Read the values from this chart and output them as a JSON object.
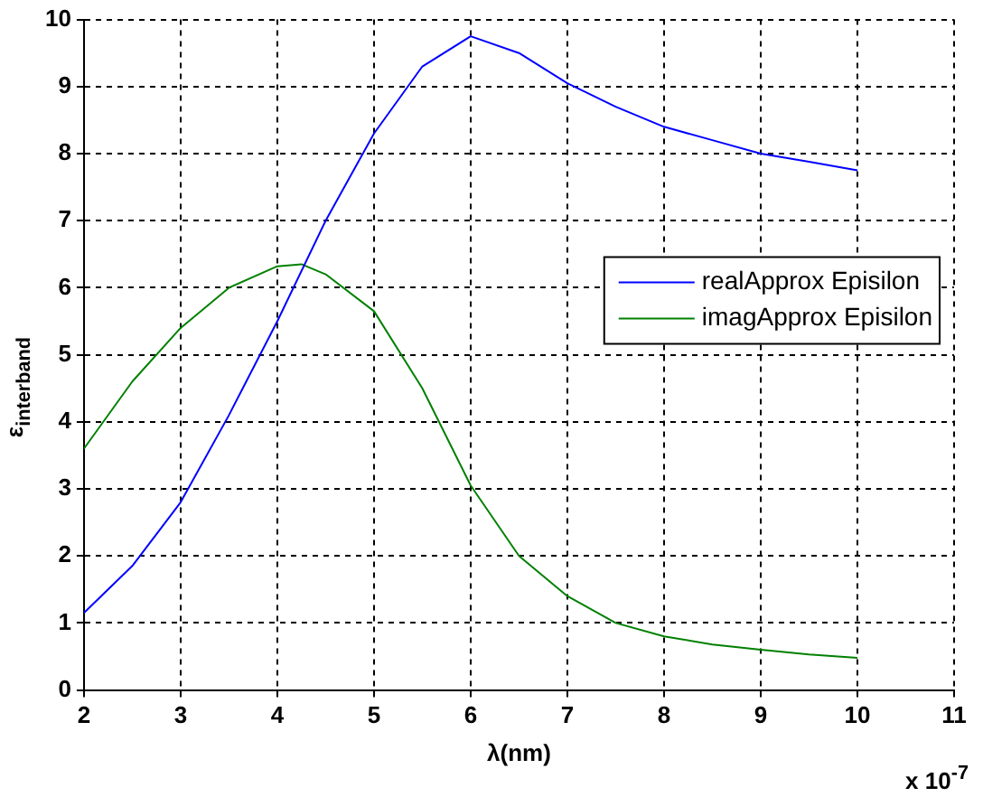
{
  "chart_data": {
    "type": "line",
    "xlabel": "λ(nm)",
    "ylabel": "ε$_{interband}$",
    "annotations": [
      "x 10$^{-7}$"
    ],
    "xlim": [
      2,
      11
    ],
    "xticks": [
      2,
      3,
      4,
      5,
      6,
      7,
      8,
      9,
      10,
      11
    ],
    "ylim": [
      0,
      10
    ],
    "yticks": [
      0,
      1,
      2,
      3,
      4,
      5,
      6,
      7,
      8,
      9,
      10
    ],
    "grid": true,
    "legend": "right",
    "marker": "none",
    "line_style": "solid",
    "series": [
      {
        "name": "realApprox Episilon",
        "color": "#0000ff",
        "x": [
          2,
          2.5,
          3,
          3.5,
          4,
          4.5,
          5,
          5.5,
          6,
          6.5,
          7,
          7.5,
          8,
          8.5,
          9,
          9.5,
          10
        ],
        "values": [
          1.15,
          1.85,
          2.8,
          4.1,
          5.5,
          7.0,
          8.3,
          9.3,
          9.75,
          9.5,
          9.05,
          8.7,
          8.4,
          8.2,
          8.0,
          7.88,
          7.75
        ]
      },
      {
        "name": "imagApprox Episilon",
        "color": "#008000",
        "x": [
          2,
          2.5,
          3,
          3.5,
          4,
          4.25,
          4.5,
          5,
          5.5,
          6,
          6.5,
          7,
          7.5,
          8,
          8.5,
          9,
          9.5,
          10
        ],
        "values": [
          3.6,
          4.6,
          5.4,
          6.0,
          6.32,
          6.35,
          6.2,
          5.65,
          4.5,
          3.05,
          2.0,
          1.4,
          1.0,
          0.8,
          0.68,
          0.6,
          0.53,
          0.48
        ]
      }
    ]
  }
}
